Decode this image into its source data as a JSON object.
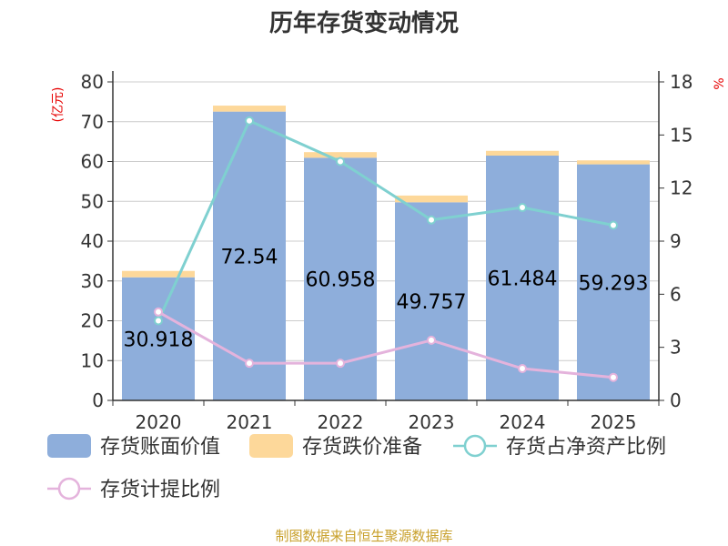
{
  "chart_data": {
    "type": "bar",
    "title": "历年存货变动情况",
    "categories": [
      "2020",
      "2021",
      "2022",
      "2023",
      "2024",
      "2025"
    ],
    "y_left": {
      "unit_label": "(亿元)",
      "ylim": [
        0,
        80
      ],
      "ticks": [
        "0",
        "10",
        "20",
        "30",
        "40",
        "50",
        "60",
        "70",
        "80"
      ]
    },
    "y_right": {
      "unit_label": "%",
      "ylim": [
        0,
        18
      ],
      "ticks": [
        "0",
        "3",
        "6",
        "9",
        "12",
        "15",
        "18"
      ]
    },
    "series": [
      {
        "name": "存货账面价值",
        "type": "bar",
        "axis": "left",
        "stack": "inv",
        "color": "#8eaedb",
        "values": [
          30.918,
          72.54,
          60.958,
          49.757,
          61.484,
          59.293
        ],
        "labels": [
          "30.918",
          "72.54",
          "60.958",
          "49.757",
          "61.484",
          "59.293"
        ]
      },
      {
        "name": "存货跌价准备",
        "type": "bar",
        "axis": "left",
        "stack": "inv",
        "color": "#fdd89a",
        "values": [
          1.6,
          1.5,
          1.4,
          1.7,
          1.2,
          1.0
        ]
      },
      {
        "name": "存货占净资产比例",
        "type": "line",
        "axis": "right",
        "color": "#7fd0d0",
        "values": [
          4.5,
          15.8,
          13.5,
          10.2,
          10.9,
          9.9
        ]
      },
      {
        "name": "存货计提比例",
        "type": "line",
        "axis": "right",
        "color": "#e4b3dc",
        "values": [
          5.0,
          2.1,
          2.1,
          3.4,
          1.8,
          1.3
        ]
      }
    ],
    "grid": true,
    "legend_position": "bottom"
  },
  "footer": {
    "source": "制图数据来自恒生聚源数据库"
  }
}
